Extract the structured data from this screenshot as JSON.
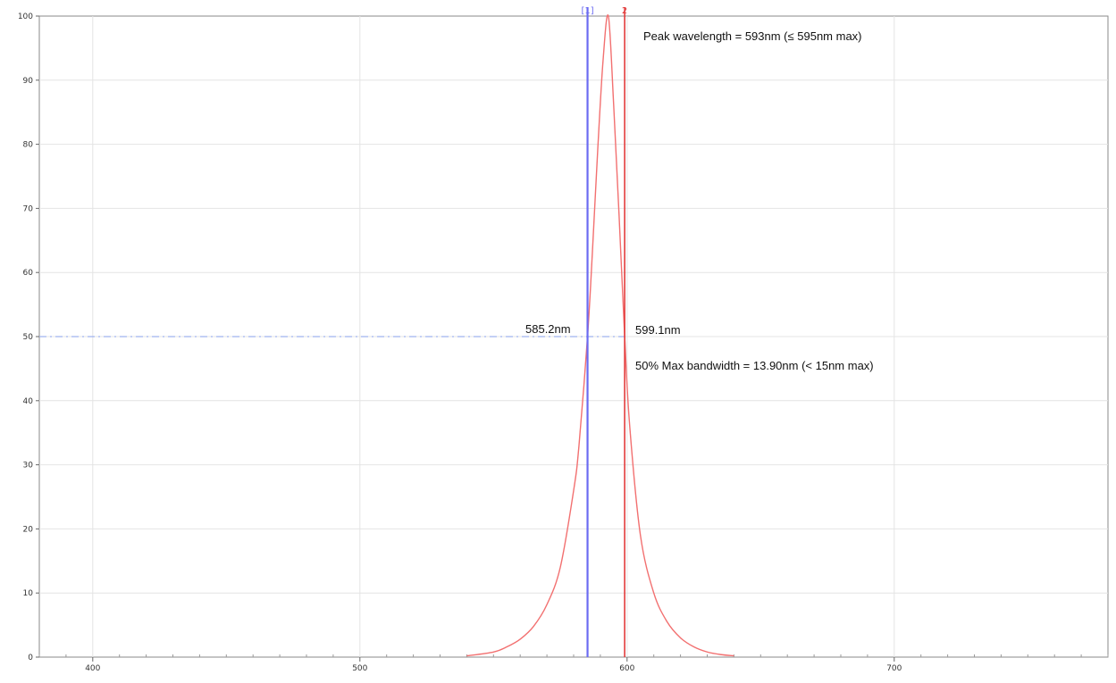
{
  "chart_data": {
    "type": "line",
    "title": "",
    "xlabel": "",
    "ylabel": "",
    "xlim": [
      380,
      780
    ],
    "ylim": [
      0,
      100
    ],
    "x_ticks": [
      400,
      500,
      600,
      700
    ],
    "y_ticks": [
      0,
      10,
      20,
      30,
      40,
      50,
      60,
      70,
      80,
      90,
      100
    ],
    "grid": true,
    "legend": "none",
    "series": [
      {
        "color": "#f27070",
        "x": [
          540,
          550,
          555,
          560,
          565,
          570,
          575,
          580,
          582,
          585.2,
          587,
          589,
          591,
          593,
          595,
          597,
          599.1,
          601,
          605,
          610,
          615,
          620,
          625,
          630,
          635,
          640
        ],
        "y": [
          0.2,
          0.8,
          1.6,
          2.8,
          4.8,
          8.2,
          14,
          26,
          33,
          50,
          63,
          79,
          93,
          100,
          86,
          69,
          50,
          36,
          19,
          10,
          5.5,
          3,
          1.6,
          0.8,
          0.4,
          0.2
        ]
      }
    ],
    "cursors": [
      {
        "label": "[1]",
        "x": 585.2,
        "color": "#6b6bf2"
      },
      {
        "label": "2",
        "x": 599.1,
        "color": "#e23c3c"
      }
    ],
    "reference_line": {
      "y": 50,
      "from_x": 380,
      "to_x": 600,
      "color": "#9fb3ef",
      "style": "dash-dot"
    },
    "annotations": {
      "peak": "Peak wavelength = 593nm (≤ 595nm max)",
      "left_cross": "585.2nm",
      "right_cross": "599.1nm",
      "bandwidth": "50% Max bandwidth = 13.90nm (< 15nm max)"
    }
  }
}
